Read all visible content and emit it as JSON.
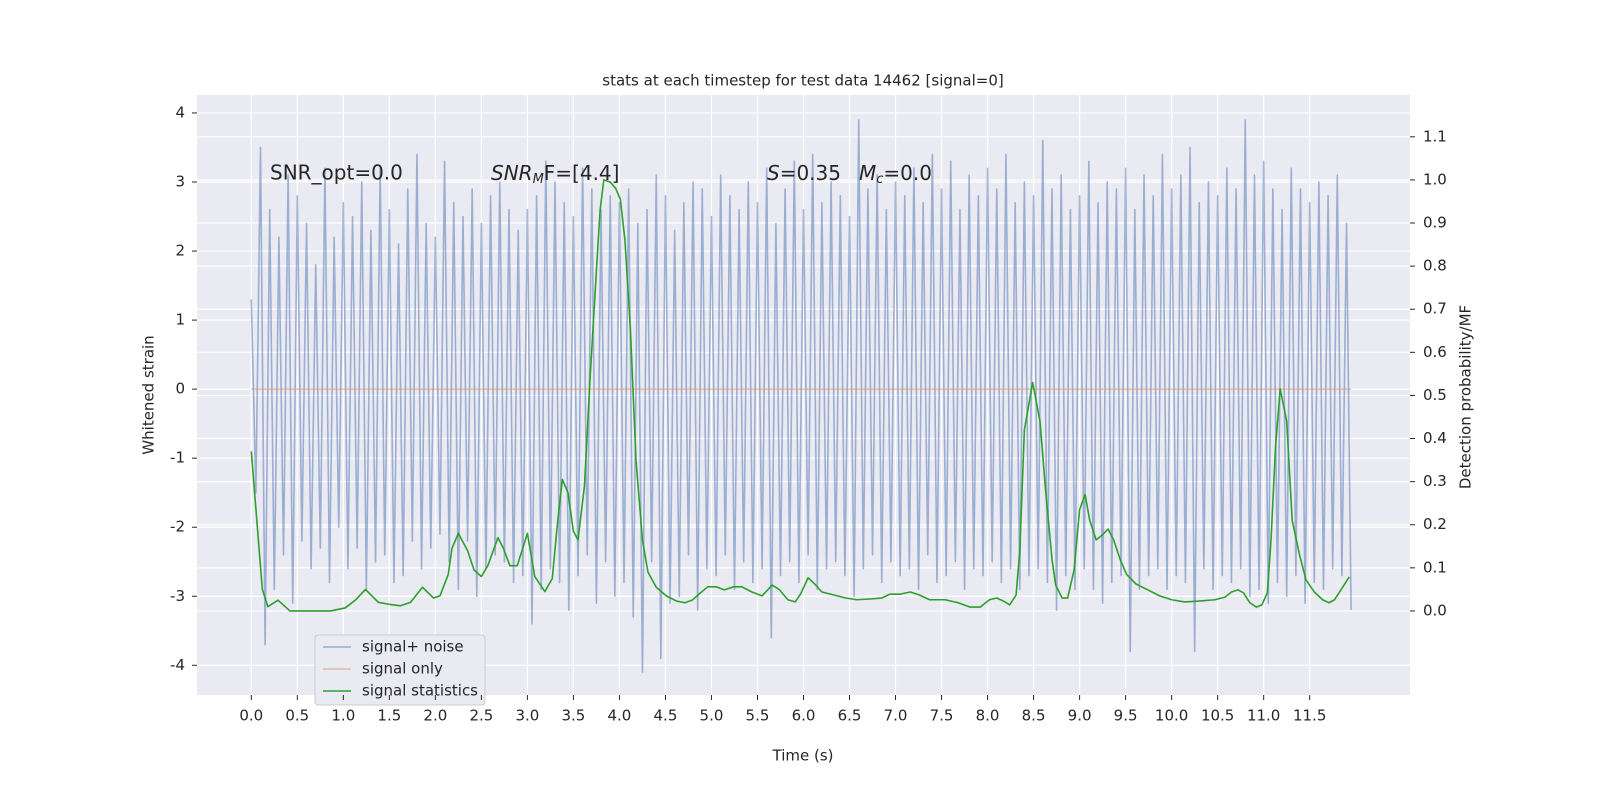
{
  "chart_data": {
    "type": "line",
    "title": "stats at each timestep for test data 14462 [signal=0]",
    "x_label": "Time (s)",
    "y_label": "Whitened strain",
    "y2_label": "Detection probability/MF",
    "annotations": [
      [
        "SNR_opt=0.0"
      ],
      [
        "SNR",
        "M",
        "F=[4.4]"
      ],
      [
        "S",
        "=0.35"
      ],
      [
        "M",
        "c",
        "=0.0"
      ]
    ],
    "xlim": [
      -0.59,
      12.59
    ],
    "ylim": [
      -4.43,
      4.26
    ],
    "y2lim": [
      -0.195,
      1.197
    ],
    "xticks": [
      {
        "value": 0,
        "label": "0.0"
      },
      0.5,
      {
        "value": 1,
        "label": "1.0"
      },
      1.5,
      {
        "value": 2,
        "label": "2.0"
      },
      2.5,
      {
        "value": 3,
        "label": "3.0"
      },
      3.5,
      {
        "value": 4,
        "label": "4.0"
      },
      4.5,
      {
        "value": 5,
        "label": "5.0"
      },
      5.5,
      {
        "value": 6,
        "label": "6.0"
      },
      6.5,
      {
        "value": 7,
        "label": "7.0"
      },
      7.5,
      {
        "value": 8,
        "label": "8.0"
      },
      8.5,
      {
        "value": 9,
        "label": "9.0"
      },
      9.5,
      {
        "value": 10,
        "label": "10.0"
      },
      10.5,
      {
        "value": 11,
        "label": "11.0"
      },
      11.5
    ],
    "yticks": [
      -4,
      -3,
      -2,
      -1,
      0,
      1,
      2,
      3,
      4
    ],
    "y2ticks": [
      {
        "value": 0,
        "label": "0.0"
      },
      0.1,
      0.2,
      0.3,
      0.4,
      0.5,
      0.6,
      0.7,
      0.8,
      0.9,
      {
        "value": 1,
        "label": "1.0"
      },
      1.1
    ],
    "grid": true,
    "legend": "lower left",
    "series": [
      {
        "name": "signal+ noise",
        "color": "#4c72b0",
        "x": [
          0,
          0.05,
          0.1,
          0.15,
          0.2,
          0.25,
          0.3,
          0.35,
          0.4,
          0.45,
          0.5,
          0.55,
          0.6,
          0.65,
          0.7,
          0.75,
          0.8,
          0.85,
          0.9,
          0.95,
          1,
          1.05,
          1.1,
          1.15,
          1.2,
          1.25,
          1.3,
          1.35,
          1.4,
          1.45,
          1.5,
          1.55,
          1.6,
          1.65,
          1.7,
          1.75,
          1.8,
          1.85,
          1.9,
          1.95,
          2,
          2.05,
          2.1,
          2.15,
          2.2,
          2.25,
          2.3,
          2.35,
          2.4,
          2.45,
          2.5,
          2.55,
          2.6,
          2.65,
          2.7,
          2.75,
          2.8,
          2.85,
          2.9,
          2.95,
          3,
          3.05,
          3.1,
          3.15,
          3.2,
          3.25,
          3.3,
          3.35,
          3.4,
          3.45,
          3.5,
          3.55,
          3.6,
          3.65,
          3.7,
          3.75,
          3.8,
          3.85,
          3.9,
          3.95,
          4,
          4.05,
          4.1,
          4.15,
          4.2,
          4.25,
          4.3,
          4.35,
          4.4,
          4.45,
          4.5,
          4.55,
          4.6,
          4.65,
          4.7,
          4.75,
          4.8,
          4.85,
          4.9,
          4.95,
          5,
          5.05,
          5.1,
          5.15,
          5.2,
          5.25,
          5.3,
          5.35,
          5.4,
          5.45,
          5.5,
          5.55,
          5.6,
          5.65,
          5.7,
          5.75,
          5.8,
          5.85,
          5.9,
          5.95,
          6,
          6.05,
          6.1,
          6.15,
          6.2,
          6.25,
          6.3,
          6.35,
          6.4,
          6.45,
          6.5,
          6.55,
          6.6,
          6.65,
          6.7,
          6.75,
          6.8,
          6.85,
          6.9,
          6.95,
          7,
          7.05,
          7.1,
          7.15,
          7.2,
          7.25,
          7.3,
          7.35,
          7.4,
          7.45,
          7.5,
          7.55,
          7.6,
          7.65,
          7.7,
          7.75,
          7.8,
          7.85,
          7.9,
          7.95,
          8,
          8.05,
          8.1,
          8.15,
          8.2,
          8.25,
          8.3,
          8.35,
          8.4,
          8.45,
          8.5,
          8.55,
          8.6,
          8.65,
          8.7,
          8.75,
          8.8,
          8.85,
          8.9,
          8.95,
          9,
          9.05,
          9.1,
          9.15,
          9.2,
          9.25,
          9.3,
          9.35,
          9.4,
          9.45,
          9.5,
          9.55,
          9.6,
          9.65,
          9.7,
          9.75,
          9.8,
          9.85,
          9.9,
          9.95,
          10,
          10.05,
          10.1,
          10.15,
          10.2,
          10.25,
          10.3,
          10.35,
          10.4,
          10.45,
          10.5,
          10.55,
          10.6,
          10.65,
          10.7,
          10.75,
          10.8,
          10.85,
          10.9,
          10.95,
          11,
          11.05,
          11.1,
          11.15,
          11.2,
          11.25,
          11.3,
          11.35,
          11.4,
          11.45,
          11.5,
          11.55,
          11.6,
          11.65,
          11.7,
          11.75,
          11.8,
          11.85,
          11.9,
          11.95
        ],
        "values": [
          1.3,
          -1.5,
          3.5,
          -3.7,
          2.6,
          -2.9,
          2.2,
          -2.4,
          3.1,
          -3.1,
          2.8,
          -2.2,
          2.4,
          -2.6,
          1.8,
          -2.3,
          3.2,
          -2.8,
          2.2,
          -2.0,
          2.7,
          -2.6,
          2.5,
          -2.3,
          3.0,
          -2.9,
          2.3,
          -2.5,
          3.2,
          -2.4,
          2.6,
          -2.8,
          2.1,
          -2.7,
          2.9,
          -2.2,
          3.4,
          -2.6,
          2.4,
          -2.3,
          2.2,
          -2.1,
          3.3,
          -2.5,
          2.7,
          -2.9,
          2.5,
          -2.2,
          2.9,
          -3.0,
          2.4,
          -2.6,
          2.8,
          -2.4,
          3.0,
          -2.5,
          2.6,
          -2.8,
          2.3,
          -2.7,
          2.6,
          -3.4,
          2.8,
          -2.9,
          3.3,
          -2.6,
          3.0,
          -2.8,
          2.7,
          -3.2,
          2.5,
          -2.7,
          3.2,
          -2.4,
          2.9,
          -3.1,
          2.6,
          -2.5,
          2.8,
          -3.0,
          2.7,
          -2.8,
          2.9,
          -3.3,
          2.4,
          -4.1,
          2.6,
          -2.5,
          3.1,
          -3.9,
          2.8,
          -3.1,
          2.3,
          -3.0,
          2.7,
          -2.4,
          3.0,
          -3.2,
          2.9,
          -2.6,
          2.5,
          -2.7,
          3.1,
          -2.4,
          2.8,
          -2.9,
          2.6,
          -2.5,
          3.0,
          -2.8,
          2.7,
          -2.6,
          3.2,
          -3.6,
          2.4,
          -2.7,
          2.9,
          -2.5,
          3.3,
          -2.8,
          2.6,
          -2.4,
          3.4,
          -2.9,
          2.7,
          -2.6,
          3.0,
          -2.5,
          2.8,
          -2.7,
          2.5,
          -3.0,
          3.9,
          -2.6,
          2.9,
          -2.4,
          3.1,
          -2.8,
          2.6,
          -2.5,
          3.0,
          -2.7,
          2.8,
          -2.6,
          3.2,
          -2.9,
          2.7,
          -2.4,
          3.4,
          -2.8,
          2.9,
          -2.7,
          3.3,
          -2.5,
          2.6,
          -2.9,
          3.1,
          -2.6,
          2.8,
          -2.7,
          3.2,
          -2.5,
          2.9,
          -2.8,
          3.4,
          -2.6,
          2.7,
          -2.9,
          3.0,
          -2.7,
          2.8,
          -2.6,
          3.6,
          -2.8,
          2.9,
          -3.2,
          3.1,
          -2.7,
          2.6,
          -2.9,
          2.8,
          -2.6,
          3.3,
          -2.9,
          2.7,
          -3.1,
          3.0,
          -2.8,
          2.9,
          -2.7,
          3.2,
          -3.8,
          2.6,
          -2.9,
          3.1,
          -2.7,
          2.8,
          -2.6,
          3.4,
          -2.9,
          2.9,
          -2.7,
          3.1,
          -2.8,
          3.5,
          -3.8,
          2.7,
          -2.6,
          3.0,
          -2.9,
          2.8,
          -2.7,
          3.2,
          -2.8,
          2.9,
          -2.6,
          3.9,
          -3.0,
          3.1,
          -2.9,
          3.3,
          -3.1,
          2.9,
          -2.8,
          2.6,
          -3.0,
          3.2,
          -2.7,
          2.9,
          -3.1,
          2.7,
          -2.8,
          3.0,
          -2.9,
          2.8,
          -2.6,
          3.1,
          -2.7,
          2.4,
          -3.2
        ]
      },
      {
        "name": "signal only",
        "color": "#dd8452",
        "x": [
          0,
          11.95
        ],
        "values": [
          0,
          0
        ]
      },
      {
        "name": "signal statistics",
        "color": "#2ca02c",
        "axis": "y2",
        "x": [
          0,
          0.12,
          0.18,
          0.29,
          0.42,
          0.64,
          0.86,
          1.02,
          1.13,
          1.24,
          1.38,
          1.51,
          1.62,
          1.73,
          1.86,
          1.98,
          2.05,
          2.14,
          2.18,
          2.25,
          2.35,
          2.42,
          2.5,
          2.57,
          2.68,
          2.74,
          2.81,
          2.89,
          3.0,
          3.08,
          3.19,
          3.27,
          3.33,
          3.38,
          3.44,
          3.5,
          3.55,
          3.62,
          3.68,
          3.75,
          3.79,
          3.83,
          3.9,
          3.96,
          4.01,
          4.06,
          4.12,
          4.18,
          4.25,
          4.31,
          4.4,
          4.51,
          4.62,
          4.71,
          4.79,
          4.88,
          4.96,
          5.05,
          5.14,
          5.24,
          5.33,
          5.44,
          5.55,
          5.66,
          5.74,
          5.83,
          5.91,
          5.97,
          6.05,
          6.12,
          6.2,
          6.33,
          6.46,
          6.58,
          6.74,
          6.85,
          6.94,
          7.05,
          7.16,
          7.26,
          7.37,
          7.54,
          7.68,
          7.81,
          7.92,
          8.02,
          8.1,
          8.19,
          8.24,
          8.31,
          8.35,
          8.4,
          8.49,
          8.57,
          8.63,
          8.7,
          8.74,
          8.81,
          8.87,
          8.94,
          9.0,
          9.06,
          9.11,
          9.18,
          9.24,
          9.31,
          9.37,
          9.44,
          9.51,
          9.61,
          9.74,
          9.87,
          10.0,
          10.14,
          10.3,
          10.47,
          10.58,
          10.65,
          10.72,
          10.78,
          10.85,
          10.92,
          10.98,
          11.04,
          11.08,
          11.13,
          11.18,
          11.25,
          11.31,
          11.39,
          11.46,
          11.55,
          11.64,
          11.71,
          11.77,
          11.84,
          11.93
        ],
        "values": [
          0.37,
          0.05,
          0.01,
          0.025,
          0.0,
          0.0,
          0.0,
          0.007,
          0.025,
          0.05,
          0.02,
          0.015,
          0.012,
          0.02,
          0.055,
          0.03,
          0.035,
          0.085,
          0.145,
          0.18,
          0.14,
          0.095,
          0.08,
          0.105,
          0.17,
          0.145,
          0.105,
          0.105,
          0.18,
          0.08,
          0.045,
          0.075,
          0.21,
          0.305,
          0.275,
          0.185,
          0.165,
          0.29,
          0.535,
          0.79,
          0.93,
          1.0,
          0.995,
          0.98,
          0.955,
          0.86,
          0.65,
          0.35,
          0.165,
          0.09,
          0.055,
          0.035,
          0.023,
          0.019,
          0.025,
          0.042,
          0.056,
          0.056,
          0.049,
          0.056,
          0.056,
          0.044,
          0.035,
          0.06,
          0.049,
          0.026,
          0.021,
          0.04,
          0.077,
          0.063,
          0.044,
          0.037,
          0.03,
          0.026,
          0.028,
          0.03,
          0.039,
          0.039,
          0.044,
          0.037,
          0.026,
          0.026,
          0.019,
          0.009,
          0.009,
          0.026,
          0.03,
          0.021,
          0.014,
          0.037,
          0.14,
          0.42,
          0.53,
          0.44,
          0.28,
          0.12,
          0.06,
          0.03,
          0.03,
          0.095,
          0.235,
          0.27,
          0.21,
          0.165,
          0.175,
          0.19,
          0.165,
          0.12,
          0.085,
          0.063,
          0.049,
          0.035,
          0.026,
          0.021,
          0.023,
          0.026,
          0.032,
          0.044,
          0.049,
          0.042,
          0.019,
          0.009,
          0.014,
          0.042,
          0.165,
          0.385,
          0.515,
          0.44,
          0.21,
          0.13,
          0.072,
          0.044,
          0.026,
          0.019,
          0.026,
          0.049,
          0.079
        ]
      }
    ]
  }
}
